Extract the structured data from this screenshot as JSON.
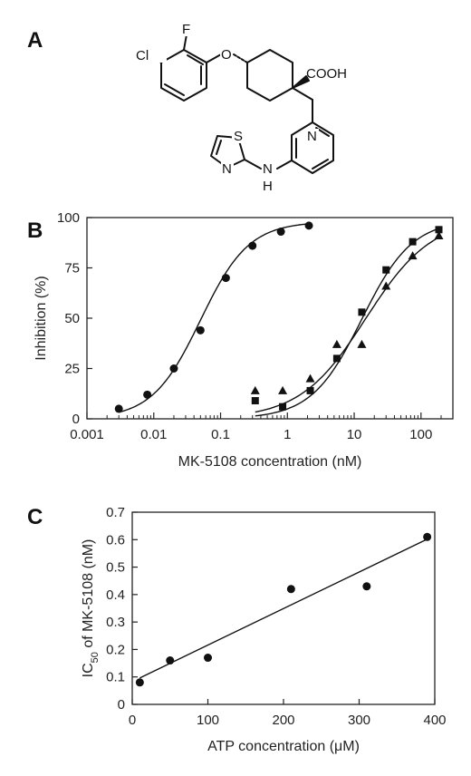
{
  "panels": {
    "a": "A",
    "b": "B",
    "c": "C"
  },
  "molecule": {
    "atoms": {
      "cl": "Cl",
      "f": "F",
      "o": "O",
      "cooh": "COOH",
      "n_pyridine": "N",
      "s": "S",
      "n_thiazole": "N",
      "n_amine": "N",
      "h_amine": "H"
    }
  },
  "chart_data": [
    {
      "type": "scatter",
      "panel": "B",
      "title": "",
      "xlabel": "MK-5108 concentration (nM)",
      "ylabel": "Inhibition (%)",
      "xscale": "log",
      "xlim": [
        0.001,
        300
      ],
      "ylim": [
        0,
        100
      ],
      "xticks": [
        0.001,
        0.01,
        0.1,
        1,
        10,
        100
      ],
      "xtick_labels": [
        "0.001",
        "0.01",
        "0.1",
        "1",
        "10",
        "100"
      ],
      "yticks": [
        0,
        25,
        50,
        75,
        100
      ],
      "ytick_labels": [
        "0",
        "25",
        "50",
        "75",
        "100"
      ],
      "series": [
        {
          "marker": "circle",
          "x": [
            0.003,
            0.008,
            0.02,
            0.05,
            0.12,
            0.3,
            0.8,
            2.1
          ],
          "y": [
            5,
            12,
            25,
            44,
            70,
            86,
            93,
            96
          ],
          "fit": {
            "ic50": 0.05,
            "hill": 1.2,
            "bottom": 0,
            "top": 98
          }
        },
        {
          "marker": "square",
          "x": [
            0.33,
            0.85,
            2.2,
            5.5,
            13,
            30,
            75,
            185
          ],
          "y": [
            9,
            6,
            14,
            30,
            53,
            74,
            88,
            94
          ],
          "fit": {
            "ic50": 13,
            "hill": 1.15,
            "bottom": 0,
            "top": 99
          }
        },
        {
          "marker": "triangle",
          "x": [
            0.33,
            0.85,
            2.2,
            5.5,
            13,
            30,
            75,
            185
          ],
          "y": [
            14,
            14,
            20,
            37,
            37,
            66,
            81,
            91
          ],
          "fit": {
            "ic50": 15,
            "hill": 0.88,
            "bottom": 0,
            "top": 100
          }
        }
      ]
    },
    {
      "type": "scatter",
      "panel": "C",
      "title": "",
      "xlabel": "ATP concentration (μM)",
      "ylabel_main": "IC",
      "ylabel_sub": "50",
      "ylabel_rest": " of MK-5108 (nM)",
      "xlim": [
        0,
        400
      ],
      "ylim": [
        0,
        0.7
      ],
      "xticks": [
        0,
        100,
        200,
        300,
        400
      ],
      "xtick_labels": [
        "0",
        "100",
        "200",
        "300",
        "400"
      ],
      "yticks": [
        0,
        0.1,
        0.2,
        0.3,
        0.4,
        0.5,
        0.6,
        0.7
      ],
      "ytick_labels": [
        "0",
        "0.1",
        "0.2",
        "0.3",
        "0.4",
        "0.5",
        "0.6",
        "0.7"
      ],
      "series": [
        {
          "marker": "circle",
          "x": [
            10,
            50,
            100,
            210,
            310,
            390
          ],
          "y": [
            0.08,
            0.16,
            0.17,
            0.42,
            0.43,
            0.61
          ],
          "fit": {
            "type": "linear",
            "slope": 0.00133,
            "intercept": 0.083
          }
        }
      ]
    }
  ]
}
